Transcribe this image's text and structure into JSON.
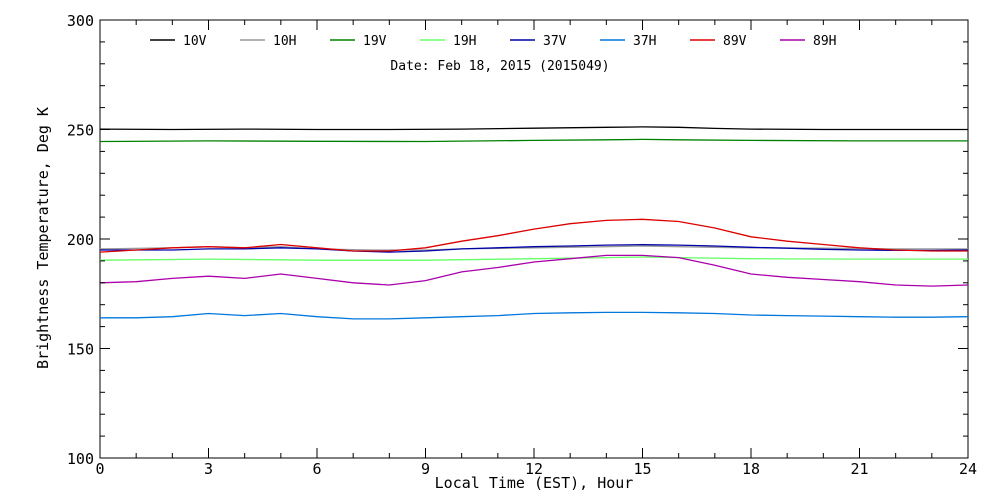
{
  "chart_data": {
    "type": "line",
    "title": "",
    "annotation": "Date: Feb 18, 2015 (2015049)",
    "xlabel": "Local Time (EST), Hour",
    "ylabel": "Brightness Temperature, Deg K",
    "xlim": [
      0,
      24
    ],
    "ylim": [
      100,
      300
    ],
    "xticks": [
      0,
      3,
      6,
      9,
      12,
      15,
      18,
      21,
      24
    ],
    "yticks": [
      100,
      150,
      200,
      250,
      300
    ],
    "grid": false,
    "legend_position": "top",
    "series": [
      {
        "name": "10V",
        "color": "#000000",
        "x": [
          0,
          2,
          4,
          6,
          8,
          10,
          12,
          14,
          15,
          16,
          17,
          18,
          20,
          22,
          24
        ],
        "y": [
          250.2,
          250.0,
          250.2,
          250.0,
          250.0,
          250.2,
          250.6,
          251.0,
          251.2,
          251.0,
          250.5,
          250.2,
          250.0,
          250.0,
          250.0
        ]
      },
      {
        "name": "10H",
        "color": "#999999",
        "x": [
          0,
          2,
          3,
          4,
          5,
          6,
          7.5,
          9,
          10,
          12,
          14,
          15,
          16,
          17,
          18,
          20,
          22,
          24
        ],
        "y": [
          195.5,
          196.0,
          196.5,
          196.0,
          196.5,
          195.5,
          195.0,
          195.0,
          195.5,
          196.0,
          196.5,
          196.8,
          196.5,
          196.2,
          196.0,
          195.8,
          195.5,
          195.5
        ]
      },
      {
        "name": "19V",
        "color": "#008000",
        "x": [
          0,
          3,
          6,
          9,
          12,
          14,
          15,
          16,
          18,
          21,
          24
        ],
        "y": [
          244.5,
          244.8,
          244.6,
          244.5,
          245.0,
          245.3,
          245.5,
          245.3,
          245.0,
          244.8,
          244.8
        ]
      },
      {
        "name": "19H",
        "color": "#66ff66",
        "x": [
          0,
          3,
          6,
          9,
          12,
          14,
          15,
          16,
          18,
          21,
          24
        ],
        "y": [
          190.3,
          190.8,
          190.3,
          190.3,
          191.0,
          191.5,
          191.8,
          191.5,
          191.0,
          190.8,
          190.8
        ]
      },
      {
        "name": "37V",
        "color": "#0000aa",
        "x": [
          0,
          1,
          2,
          3,
          4,
          5,
          6,
          7,
          8,
          9,
          10,
          11,
          12,
          13,
          14,
          15,
          16,
          17,
          18,
          19,
          20,
          21,
          22,
          23,
          24
        ],
        "y": [
          195,
          195,
          195,
          195.5,
          195.5,
          196,
          195.5,
          194.5,
          194,
          194.5,
          195.5,
          196,
          196.5,
          196.8,
          197.2,
          197.4,
          197.2,
          196.8,
          196.2,
          195.8,
          195.3,
          195,
          194.8,
          194.8,
          195
        ]
      },
      {
        "name": "37H",
        "color": "#0077dd",
        "x": [
          0,
          1,
          2,
          3,
          4,
          5,
          6,
          7,
          8,
          9,
          10,
          11,
          12,
          13,
          14,
          15,
          16,
          17,
          18,
          19,
          20,
          21,
          22,
          23,
          24
        ],
        "y": [
          164,
          164,
          164.5,
          166,
          165,
          166,
          164.5,
          163.5,
          163.5,
          164,
          164.5,
          165,
          166,
          166.3,
          166.5,
          166.5,
          166.3,
          166,
          165.3,
          165,
          164.8,
          164.5,
          164.3,
          164.3,
          164.5
        ]
      },
      {
        "name": "89V",
        "color": "#dd0000",
        "x": [
          0,
          1,
          2,
          3,
          4,
          5,
          6,
          7,
          8,
          9,
          10,
          11,
          12,
          13,
          14,
          15,
          16,
          17,
          18,
          19,
          20,
          21,
          22,
          23,
          24
        ],
        "y": [
          194,
          195,
          196,
          196.5,
          196,
          197.5,
          196,
          194.5,
          194.5,
          196,
          199,
          201.5,
          204.5,
          207,
          208.5,
          209,
          208,
          205,
          201,
          199,
          197.5,
          196,
          195,
          194.5,
          194.5
        ]
      },
      {
        "name": "89H",
        "color": "#aa00aa",
        "x": [
          0,
          1,
          2,
          3,
          4,
          5,
          6,
          7,
          8,
          9,
          10,
          11,
          12,
          13,
          14,
          15,
          16,
          17,
          18,
          19,
          20,
          21,
          22,
          23,
          24
        ],
        "y": [
          180,
          180.5,
          182,
          183,
          182,
          184,
          182,
          180,
          179,
          181,
          185,
          187,
          189.5,
          191,
          192.5,
          192.5,
          191.5,
          188,
          184,
          182.5,
          181.5,
          180.5,
          179,
          178.5,
          179
        ]
      }
    ]
  }
}
